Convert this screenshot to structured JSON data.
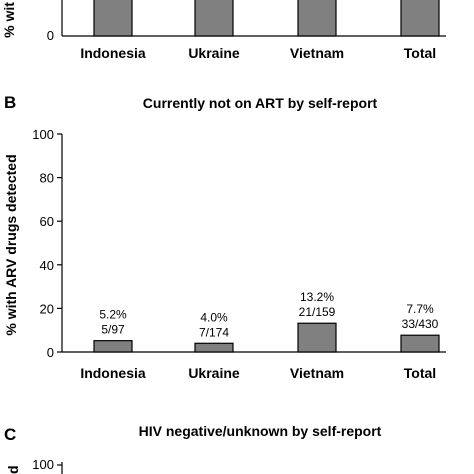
{
  "chart_data": [
    {
      "panel": "A",
      "type": "bar",
      "title": "",
      "ylabel": "% wit",
      "yticks": [
        "0"
      ],
      "categories": [
        "Indonesia",
        "Ukraine",
        "Vietnam",
        "Total"
      ],
      "values": [
        100,
        100,
        100,
        100
      ],
      "bar_labels": []
    },
    {
      "panel": "B",
      "type": "bar",
      "title": "Currently not on ART by self-report",
      "ylabel": "% with ARV drugs detected",
      "ylim": [
        0,
        100
      ],
      "yticks": [
        "0",
        "20",
        "40",
        "60",
        "80",
        "100"
      ],
      "categories": [
        "Indonesia",
        "Ukraine",
        "Vietnam",
        "Total"
      ],
      "values": [
        5.2,
        4.0,
        13.2,
        7.7
      ],
      "bar_labels": [
        {
          "pct": "5.2%",
          "frac": "5/97"
        },
        {
          "pct": "4.0%",
          "frac": "7/174"
        },
        {
          "pct": "13.2%",
          "frac": "21/159"
        },
        {
          "pct": "7.7%",
          "frac": "33/430"
        }
      ]
    },
    {
      "panel": "C",
      "type": "bar",
      "title": "HIV negative/unknown by self-report",
      "ylabel": "d",
      "yticks": [
        "100"
      ],
      "categories": [],
      "values": []
    }
  ],
  "style": {
    "bar_fill": "#808080",
    "bar_stroke": "#000000"
  }
}
